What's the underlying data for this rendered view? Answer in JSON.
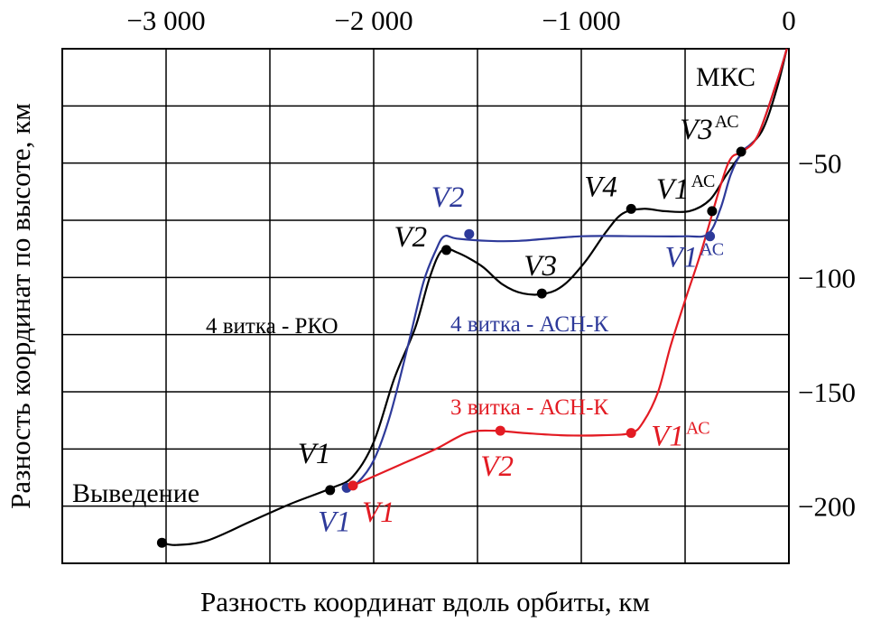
{
  "chart_data": {
    "type": "line",
    "xlabel": "Разность координат вдоль орбиты, км",
    "ylabel": "Разность координат по высоте, км",
    "xlim": [
      -3500,
      0
    ],
    "ylim": [
      -225,
      0
    ],
    "x_ticks": [
      -3000,
      -2000,
      -1000,
      0
    ],
    "x_tick_labels": [
      "−3 000",
      "−2 000",
      "−1 000",
      "0"
    ],
    "y_ticks": [
      -50,
      -100,
      -150,
      -200
    ],
    "y_tick_labels": [
      "−50",
      "−100",
      "−150",
      "−200"
    ],
    "grid": true,
    "series": [
      {
        "name": "4 витка - РКО",
        "color": "#000000",
        "curve": [
          [
            -3020,
            -216
          ],
          [
            -2950,
            -217
          ],
          [
            -2800,
            -215
          ],
          [
            -2600,
            -207
          ],
          [
            -2400,
            -199
          ],
          [
            -2200,
            -192
          ],
          [
            -2100,
            -187
          ],
          [
            -2000,
            -172
          ],
          [
            -1900,
            -144
          ],
          [
            -1800,
            -122
          ],
          [
            -1730,
            -100
          ],
          [
            -1670,
            -88
          ],
          [
            -1600,
            -89
          ],
          [
            -1480,
            -95
          ],
          [
            -1380,
            -103
          ],
          [
            -1280,
            -107
          ],
          [
            -1170,
            -107
          ],
          [
            -1080,
            -103
          ],
          [
            -980,
            -93
          ],
          [
            -880,
            -80
          ],
          [
            -800,
            -72
          ],
          [
            -700,
            -70
          ],
          [
            -600,
            -71
          ],
          [
            -480,
            -71
          ],
          [
            -380,
            -66
          ],
          [
            -300,
            -55
          ],
          [
            -220,
            -45
          ],
          [
            -130,
            -36
          ],
          [
            -60,
            -18
          ],
          [
            -10,
            0
          ]
        ],
        "points": [
          {
            "label": "",
            "x": -3020,
            "y": -216
          },
          {
            "label": "V1",
            "x": -2210,
            "y": -193
          },
          {
            "label": "V2",
            "x": -1650,
            "y": -88
          },
          {
            "label": "V3",
            "x": -1190,
            "y": -107
          },
          {
            "label": "V4",
            "x": -760,
            "y": -70
          },
          {
            "label": "V1",
            "sup": "АС",
            "x": -370,
            "y": -71
          },
          {
            "label": "V3",
            "sup": "АС",
            "x": -230,
            "y": -45
          }
        ]
      },
      {
        "name": "4 витка - АСН-К",
        "color": "#2e3a9a",
        "curve": [
          [
            -2130,
            -192
          ],
          [
            -2080,
            -190
          ],
          [
            -2000,
            -180
          ],
          [
            -1920,
            -160
          ],
          [
            -1830,
            -128
          ],
          [
            -1760,
            -102
          ],
          [
            -1700,
            -88
          ],
          [
            -1660,
            -82
          ],
          [
            -1600,
            -83
          ],
          [
            -1450,
            -84
          ],
          [
            -1300,
            -84
          ],
          [
            -1000,
            -82
          ],
          [
            -700,
            -82
          ],
          [
            -500,
            -82
          ],
          [
            -390,
            -81
          ],
          [
            -330,
            -70
          ],
          [
            -280,
            -55
          ],
          [
            -225,
            -45
          ],
          [
            -150,
            -38
          ],
          [
            -60,
            -15
          ],
          [
            -10,
            0
          ]
        ],
        "points": [
          {
            "label": "V1",
            "x": -2130,
            "y": -192
          },
          {
            "label": "V2",
            "x": -1540,
            "y": -81
          },
          {
            "label": "V1",
            "sup": "АС",
            "x": -380,
            "y": -82
          }
        ]
      },
      {
        "name": "3 витка - АСН-К",
        "color": "#e31b23",
        "curve": [
          [
            -2100,
            -191
          ],
          [
            -2000,
            -187
          ],
          [
            -1850,
            -181
          ],
          [
            -1700,
            -175
          ],
          [
            -1550,
            -168
          ],
          [
            -1420,
            -167
          ],
          [
            -1280,
            -168
          ],
          [
            -1100,
            -169
          ],
          [
            -900,
            -169
          ],
          [
            -760,
            -168
          ],
          [
            -700,
            -163
          ],
          [
            -630,
            -150
          ],
          [
            -570,
            -130
          ],
          [
            -500,
            -110
          ],
          [
            -420,
            -88
          ],
          [
            -330,
            -60
          ],
          [
            -280,
            -48
          ],
          [
            -225,
            -45
          ],
          [
            -150,
            -38
          ],
          [
            -60,
            -15
          ],
          [
            -10,
            0
          ]
        ],
        "points": [
          {
            "label": "V1",
            "x": -2100,
            "y": -191
          },
          {
            "label": "V2",
            "x": -1390,
            "y": -167
          },
          {
            "label": "V1",
            "sup": "АС",
            "x": -760,
            "y": -168
          }
        ]
      }
    ],
    "annotations": [
      "МКС",
      "Выведение"
    ]
  }
}
